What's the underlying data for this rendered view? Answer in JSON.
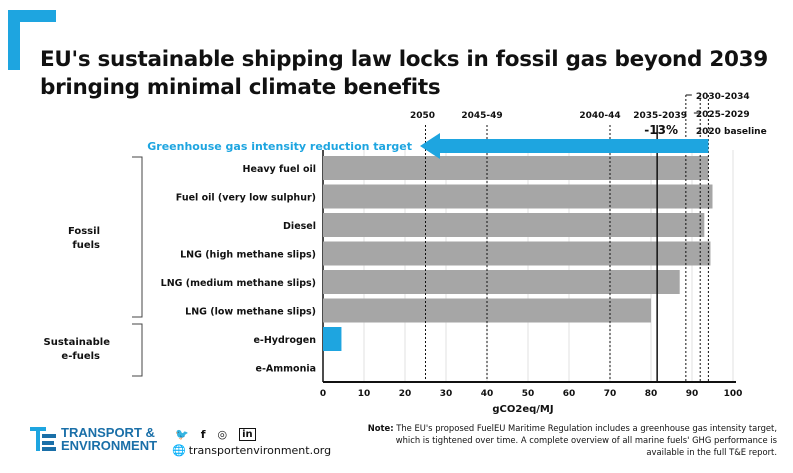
{
  "title_line1": "EU's sustainable shipping law locks in fossil gas beyond 2039",
  "title_line2": "bringing minimal climate benefits",
  "target_label": "Greenhouse gas intensity reduction target",
  "target_reduction": "-13%",
  "colors": {
    "bar": "#a6a6a6",
    "hydrogen": "#1ea5e0",
    "arrow": "#1ea5e0",
    "brand": "#1a6fa8"
  },
  "groups": [
    {
      "label_line1": "Fossil",
      "label_line2": "fuels"
    },
    {
      "label_line1": "Sustainable",
      "label_line2": "e-fuels"
    }
  ],
  "chart_data": {
    "type": "bar",
    "orientation": "horizontal",
    "categories": [
      "Heavy fuel oil",
      "Fuel oil (very low sulphur)",
      "Diesel",
      "LNG (high methane slips)",
      "LNG (medium methane slips)",
      "LNG (low methane slips)",
      "e-Hydrogen",
      "e-Ammonia"
    ],
    "values": [
      94,
      95,
      93,
      94.5,
      87,
      80,
      4.5,
      0
    ],
    "xlabel": "gCO2eq/MJ",
    "xlim": [
      0,
      100
    ],
    "xticks": [
      0,
      10,
      20,
      30,
      40,
      50,
      60,
      70,
      80,
      90,
      100
    ],
    "reference_lines": [
      {
        "label": "2050",
        "value": 25,
        "style": "dotted"
      },
      {
        "label": "2045-49",
        "value": 40,
        "style": "dotted"
      },
      {
        "label": "2040-44",
        "value": 70,
        "style": "dotted"
      },
      {
        "label": "2035-2039",
        "value": 81.5,
        "style": "solid"
      },
      {
        "label": "2030-2034",
        "value": 88.5,
        "style": "dotted"
      },
      {
        "label": "2025-2029",
        "value": 92,
        "style": "dotted"
      },
      {
        "label": "2020 baseline",
        "value": 94,
        "style": "dotted"
      }
    ]
  },
  "footer": {
    "org_line1": "TRANSPORT &",
    "org_line2": "ENVIRONMENT",
    "website": "transportenvironment.org",
    "social_icons": [
      "twitter-icon",
      "facebook-icon",
      "instagram-icon",
      "linkedin-icon"
    ],
    "note_bold": "Note:",
    "note_text": " The EU's proposed FuelEU Maritime Regulation includes a greenhouse gas intensity target, which is tightened over time. A complete overview of all marine fuels' GHG performance is available in the full T&E report."
  }
}
